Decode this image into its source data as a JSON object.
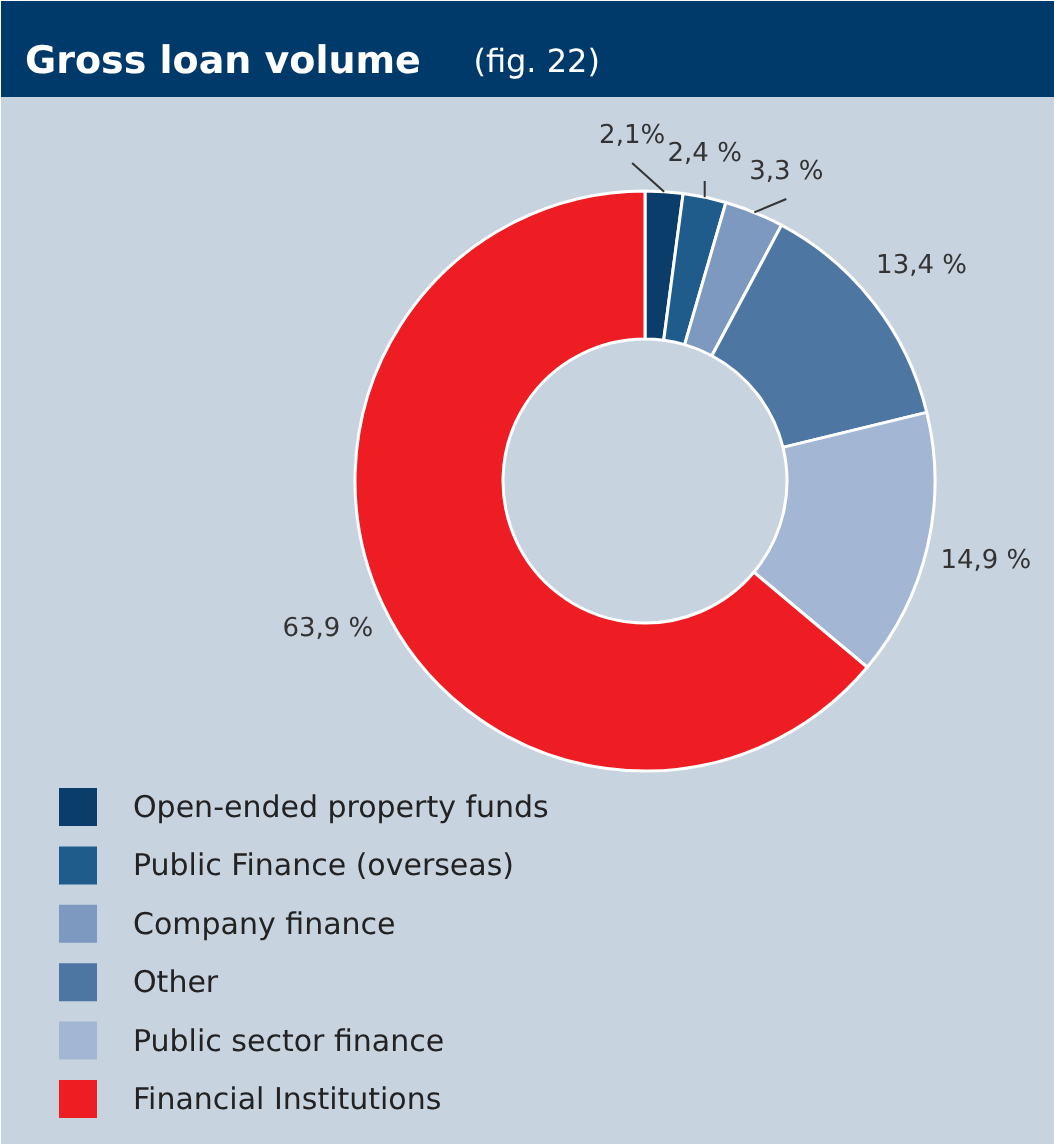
{
  "chart_data": {
    "type": "donut",
    "title": "Gross loan volume",
    "subtitle": "(fig. 22)",
    "categories": [
      "Open-ended property funds",
      "Public Finance (overseas)",
      "Company finance",
      "Other",
      "Public sector finance",
      "Financial Institutions"
    ],
    "values": [
      2.1,
      2.4,
      3.3,
      13.4,
      14.9,
      63.9
    ],
    "value_labels": [
      "2,1%",
      "2,4 %",
      "3,3 %",
      "13,4 %",
      "14,9 %",
      "63,9 %"
    ],
    "colors": [
      "#0b3d6b",
      "#1f5c8c",
      "#7d99bf",
      "#4e76a3",
      "#a3b6d4",
      "#ee1d23"
    ],
    "legend": "bottom left"
  }
}
